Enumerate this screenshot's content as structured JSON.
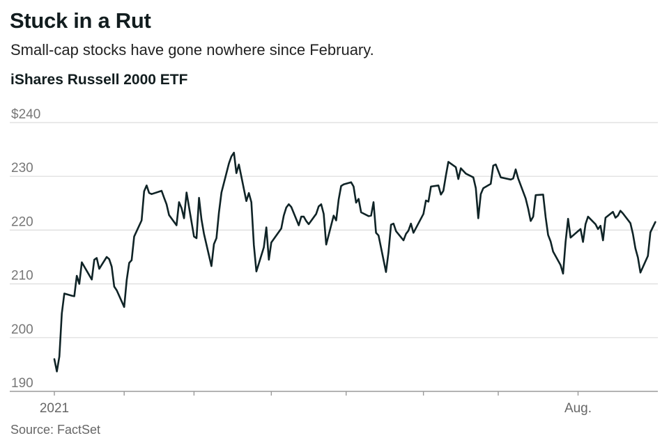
{
  "header": {
    "title": "Stuck in a Rut",
    "subtitle": "Small-cap stocks have gone nowhere since February.",
    "series_title": "iShares Russell 2000 ETF"
  },
  "footer": {
    "source": "Source: FactSet"
  },
  "colors": {
    "line": "#0f2326",
    "grid": "#dcdcdc",
    "axis": "#9a9a9a",
    "label": "#777777"
  },
  "chart_data": {
    "type": "line",
    "title": "iShares Russell 2000 ETF",
    "xlabel": "",
    "ylabel": "",
    "ylim": [
      190,
      240
    ],
    "y_ticks": [
      190,
      200,
      210,
      220,
      230,
      240
    ],
    "y_tick_labels": [
      "190",
      "200",
      "210",
      "220",
      "230",
      "$240"
    ],
    "x_tick_labels": [
      {
        "label": "2021",
        "date": "2021-01-04"
      },
      {
        "label": "Aug.",
        "date": "2021-08-02"
      }
    ],
    "x_minor_ticks": [
      "2021-02-01",
      "2021-03-01",
      "2021-04-01",
      "2021-05-01",
      "2021-06-01",
      "2021-07-01"
    ],
    "x_range": [
      "2021-01-04",
      "2021-09-03"
    ],
    "grid": true,
    "legend": "none",
    "series": [
      {
        "values": [
          [
            {
              "d": "2021-01-04",
              "v": 196.0
            },
            {
              "d": "2021-01-05",
              "v": 193.7
            },
            {
              "d": "2021-01-06",
              "v": 196.5
            },
            {
              "d": "2021-01-07",
              "v": 204.5
            },
            {
              "d": "2021-01-08",
              "v": 208.2
            },
            {
              "d": "2021-01-11",
              "v": 207.8
            },
            {
              "d": "2021-01-12",
              "v": 207.7
            },
            {
              "d": "2021-01-13",
              "v": 211.5
            },
            {
              "d": "2021-01-14",
              "v": 210.0
            },
            {
              "d": "2021-01-15",
              "v": 214.0
            },
            {
              "d": "2021-01-19",
              "v": 210.8
            },
            {
              "d": "2021-01-20",
              "v": 214.5
            },
            {
              "d": "2021-01-21",
              "v": 214.8
            },
            {
              "d": "2021-01-22",
              "v": 212.8
            },
            {
              "d": "2021-01-25",
              "v": 215.0
            },
            {
              "d": "2021-01-26",
              "v": 214.6
            },
            {
              "d": "2021-01-27",
              "v": 213.2
            },
            {
              "d": "2021-01-28",
              "v": 209.5
            },
            {
              "d": "2021-01-29",
              "v": 208.8
            },
            {
              "d": "2021-02-01",
              "v": 205.7
            },
            {
              "d": "2021-02-02",
              "v": 210.7
            },
            {
              "d": "2021-02-03",
              "v": 213.9
            },
            {
              "d": "2021-02-04",
              "v": 214.4
            },
            {
              "d": "2021-02-05",
              "v": 218.8
            },
            {
              "d": "2021-02-08",
              "v": 221.8
            },
            {
              "d": "2021-02-09",
              "v": 227.2
            },
            {
              "d": "2021-02-10",
              "v": 228.3
            },
            {
              "d": "2021-02-11",
              "v": 226.9
            },
            {
              "d": "2021-02-12",
              "v": 226.7
            },
            {
              "d": "2021-02-16",
              "v": 227.3
            },
            {
              "d": "2021-02-17",
              "v": 226.0
            },
            {
              "d": "2021-02-18",
              "v": 224.8
            },
            {
              "d": "2021-02-19",
              "v": 222.8
            },
            {
              "d": "2021-02-22",
              "v": 220.9
            },
            {
              "d": "2021-02-23",
              "v": 225.2
            },
            {
              "d": "2021-02-24",
              "v": 224.1
            },
            {
              "d": "2021-02-25",
              "v": 222.2
            },
            {
              "d": "2021-02-26",
              "v": 227.0
            },
            {
              "d": "2021-03-01",
              "v": 218.8
            },
            {
              "d": "2021-03-02",
              "v": 218.5
            },
            {
              "d": "2021-03-03",
              "v": 226.0
            },
            {
              "d": "2021-03-04",
              "v": 222.0
            },
            {
              "d": "2021-03-05",
              "v": 219.3
            },
            {
              "d": "2021-03-08",
              "v": 213.3
            },
            {
              "d": "2021-03-09",
              "v": 217.4
            },
            {
              "d": "2021-03-10",
              "v": 218.5
            },
            {
              "d": "2021-03-11",
              "v": 223.3
            },
            {
              "d": "2021-03-12",
              "v": 227.0
            },
            {
              "d": "2021-03-15",
              "v": 232.4
            },
            {
              "d": "2021-03-16",
              "v": 233.7
            },
            {
              "d": "2021-03-17",
              "v": 234.4
            },
            {
              "d": "2021-03-18",
              "v": 230.6
            },
            {
              "d": "2021-03-19",
              "v": 232.2
            },
            {
              "d": "2021-03-22",
              "v": 225.4
            },
            {
              "d": "2021-03-23",
              "v": 226.9
            },
            {
              "d": "2021-03-24",
              "v": 225.2
            },
            {
              "d": "2021-03-25",
              "v": 217.2
            },
            {
              "d": "2021-03-26",
              "v": 212.3
            },
            {
              "d": "2021-03-29",
              "v": 216.8
            },
            {
              "d": "2021-03-30",
              "v": 220.5
            },
            {
              "d": "2021-03-31",
              "v": 214.5
            },
            {
              "d": "2021-04-01",
              "v": 217.7
            },
            {
              "d": "2021-04-05",
              "v": 220.3
            },
            {
              "d": "2021-04-06",
              "v": 222.7
            },
            {
              "d": "2021-04-07",
              "v": 224.2
            },
            {
              "d": "2021-04-08",
              "v": 224.8
            },
            {
              "d": "2021-04-09",
              "v": 224.3
            },
            {
              "d": "2021-04-12",
              "v": 220.9
            },
            {
              "d": "2021-04-13",
              "v": 222.5
            },
            {
              "d": "2021-04-14",
              "v": 222.5
            },
            {
              "d": "2021-04-15",
              "v": 221.7
            },
            {
              "d": "2021-04-16",
              "v": 221.1
            },
            {
              "d": "2021-04-19",
              "v": 223.0
            },
            {
              "d": "2021-04-20",
              "v": 224.4
            },
            {
              "d": "2021-04-21",
              "v": 224.8
            },
            {
              "d": "2021-04-22",
              "v": 223.0
            },
            {
              "d": "2021-04-23",
              "v": 217.3
            },
            {
              "d": "2021-04-26",
              "v": 222.7
            },
            {
              "d": "2021-04-27",
              "v": 221.8
            },
            {
              "d": "2021-04-28",
              "v": 225.7
            },
            {
              "d": "2021-04-29",
              "v": 228.2
            },
            {
              "d": "2021-04-30",
              "v": 228.5
            },
            {
              "d": "2021-05-03",
              "v": 228.9
            },
            {
              "d": "2021-05-04",
              "v": 228.1
            },
            {
              "d": "2021-05-05",
              "v": 225.1
            },
            {
              "d": "2021-05-06",
              "v": 225.8
            },
            {
              "d": "2021-05-07",
              "v": 223.3
            },
            {
              "d": "2021-05-10",
              "v": 222.6
            },
            {
              "d": "2021-05-11",
              "v": 222.7
            },
            {
              "d": "2021-05-12",
              "v": 225.2
            },
            {
              "d": "2021-05-13",
              "v": 219.5
            },
            {
              "d": "2021-05-14",
              "v": 219.0
            },
            {
              "d": "2021-05-17",
              "v": 212.2
            },
            {
              "d": "2021-05-18",
              "v": 215.9
            },
            {
              "d": "2021-05-19",
              "v": 221.0
            },
            {
              "d": "2021-05-20",
              "v": 221.2
            },
            {
              "d": "2021-05-21",
              "v": 219.8
            },
            {
              "d": "2021-05-24",
              "v": 218.1
            },
            {
              "d": "2021-05-25",
              "v": 219.3
            },
            {
              "d": "2021-05-26",
              "v": 219.9
            },
            {
              "d": "2021-05-27",
              "v": 221.2
            },
            {
              "d": "2021-05-28",
              "v": 219.5
            },
            {
              "d": "2021-06-01",
              "v": 223.0
            },
            {
              "d": "2021-06-02",
              "v": 225.5
            },
            {
              "d": "2021-06-03",
              "v": 225.3
            },
            {
              "d": "2021-06-04",
              "v": 228.1
            },
            {
              "d": "2021-06-07",
              "v": 228.3
            },
            {
              "d": "2021-06-08",
              "v": 226.6
            },
            {
              "d": "2021-06-09",
              "v": 227.3
            },
            {
              "d": "2021-06-10",
              "v": 230.1
            },
            {
              "d": "2021-06-11",
              "v": 232.7
            },
            {
              "d": "2021-06-14",
              "v": 231.7
            },
            {
              "d": "2021-06-15",
              "v": 229.5
            },
            {
              "d": "2021-06-16",
              "v": 231.5
            },
            {
              "d": "2021-06-17",
              "v": 231.0
            },
            {
              "d": "2021-06-18",
              "v": 230.5
            },
            {
              "d": "2021-06-21",
              "v": 229.8
            },
            {
              "d": "2021-06-22",
              "v": 227.8
            },
            {
              "d": "2021-06-23",
              "v": 222.2
            },
            {
              "d": "2021-06-24",
              "v": 226.7
            },
            {
              "d": "2021-06-25",
              "v": 227.8
            },
            {
              "d": "2021-06-28",
              "v": 228.6
            },
            {
              "d": "2021-06-29",
              "v": 232.0
            },
            {
              "d": "2021-06-30",
              "v": 232.2
            },
            {
              "d": "2021-07-01",
              "v": 231.0
            },
            {
              "d": "2021-07-02",
              "v": 229.8
            },
            {
              "d": "2021-07-06",
              "v": 229.4
            },
            {
              "d": "2021-07-07",
              "v": 229.6
            },
            {
              "d": "2021-07-08",
              "v": 231.3
            },
            {
              "d": "2021-07-09",
              "v": 229.6
            },
            {
              "d": "2021-07-12",
              "v": 225.9
            },
            {
              "d": "2021-07-13",
              "v": 224.0
            },
            {
              "d": "2021-07-14",
              "v": 221.7
            },
            {
              "d": "2021-07-15",
              "v": 222.5
            },
            {
              "d": "2021-07-16",
              "v": 226.5
            },
            {
              "d": "2021-07-19",
              "v": 226.6
            },
            {
              "d": "2021-07-20",
              "v": 222.4
            },
            {
              "d": "2021-07-21",
              "v": 219.1
            },
            {
              "d": "2021-07-22",
              "v": 217.9
            },
            {
              "d": "2021-07-23",
              "v": 216.0
            },
            {
              "d": "2021-07-26",
              "v": 213.5
            },
            {
              "d": "2021-07-27",
              "v": 211.9
            },
            {
              "d": "2021-07-28",
              "v": 217.8
            },
            {
              "d": "2021-07-29",
              "v": 222.1
            },
            {
              "d": "2021-07-30",
              "v": 218.6
            },
            {
              "d": "2021-08-02",
              "v": 219.8
            },
            {
              "d": "2021-08-03",
              "v": 220.2
            },
            {
              "d": "2021-08-04",
              "v": 217.8
            },
            {
              "d": "2021-08-05",
              "v": 221.1
            },
            {
              "d": "2021-08-06",
              "v": 222.5
            },
            {
              "d": "2021-08-09",
              "v": 221.1
            },
            {
              "d": "2021-08-10",
              "v": 220.2
            },
            {
              "d": "2021-08-11",
              "v": 220.8
            },
            {
              "d": "2021-08-12",
              "v": 218.1
            },
            {
              "d": "2021-08-13",
              "v": 222.3
            },
            {
              "d": "2021-08-16",
              "v": 223.4
            },
            {
              "d": "2021-08-17",
              "v": 222.3
            },
            {
              "d": "2021-08-18",
              "v": 222.7
            },
            {
              "d": "2021-08-19",
              "v": 223.6
            },
            {
              "d": "2021-08-20",
              "v": 223.1
            },
            {
              "d": "2021-08-23",
              "v": 221.3
            },
            {
              "d": "2021-08-24",
              "v": 219.3
            },
            {
              "d": "2021-08-25",
              "v": 216.6
            },
            {
              "d": "2021-08-26",
              "v": 214.9
            },
            {
              "d": "2021-08-27",
              "v": 212.1
            },
            {
              "d": "2021-08-30",
              "v": 215.2
            },
            {
              "d": "2021-08-31",
              "v": 219.6
            },
            {
              "d": "2021-09-02",
              "v": 221.5
            }
          ]
        ]
      }
    ]
  }
}
